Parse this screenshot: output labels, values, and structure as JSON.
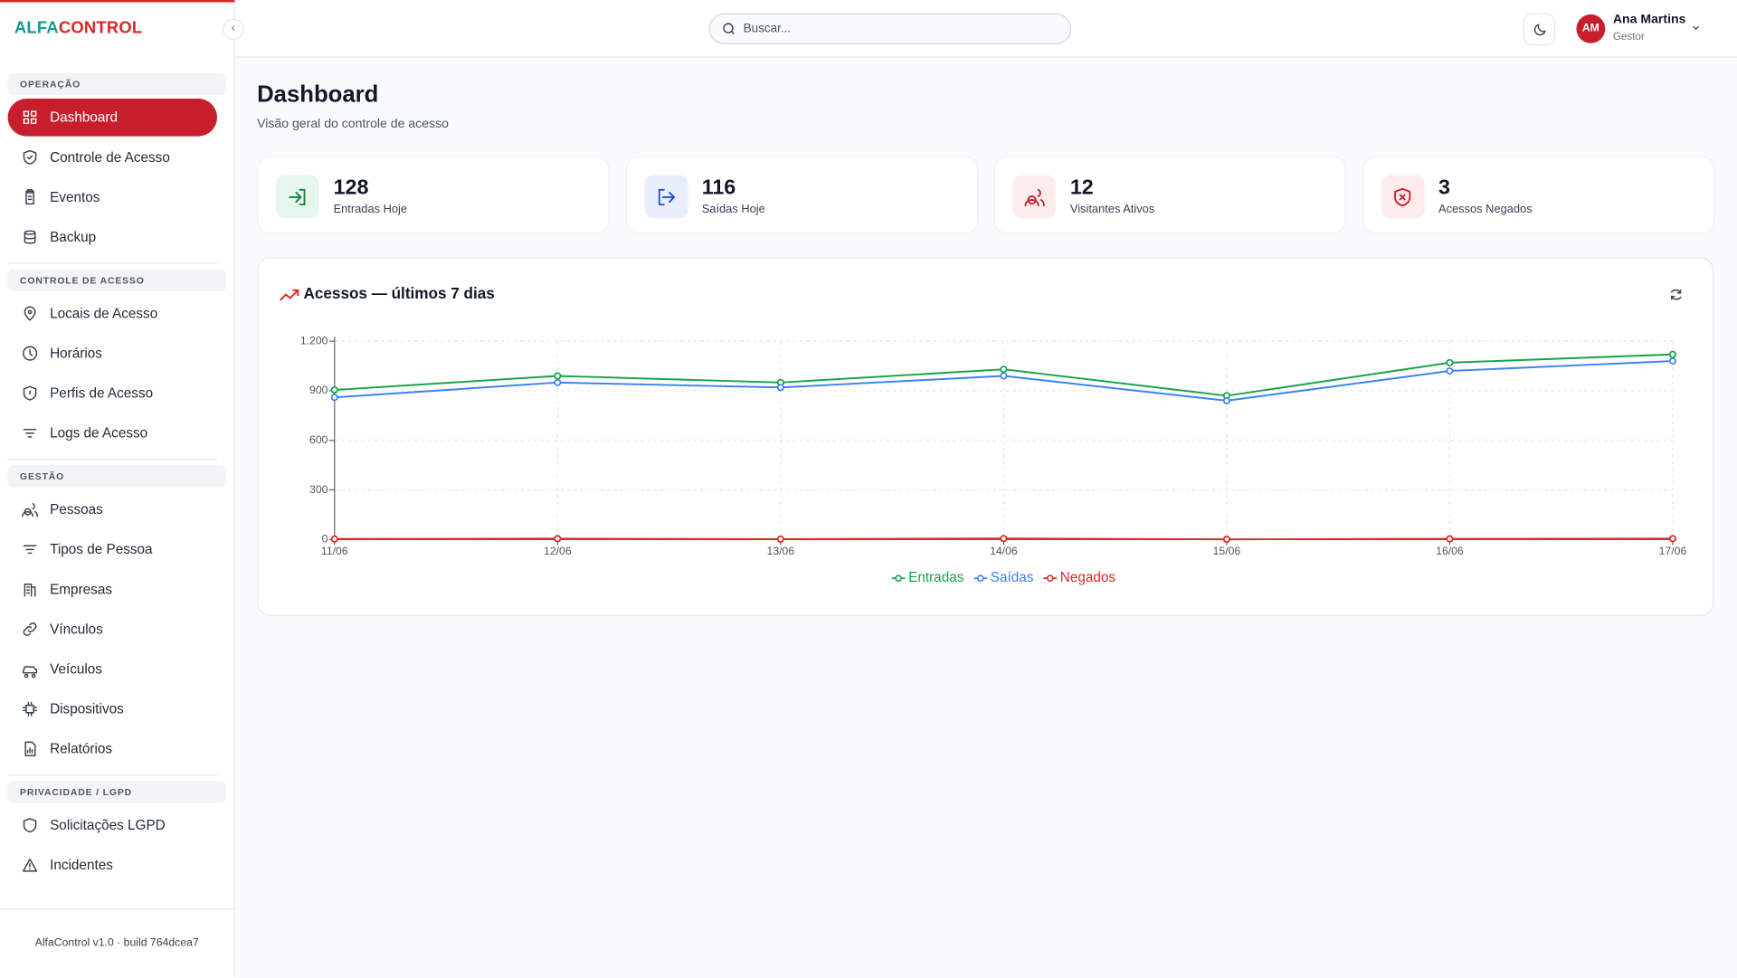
{
  "brand": {
    "first": "ALFA",
    "second": "CONTROL"
  },
  "search": {
    "placeholder": "Buscar..."
  },
  "user": {
    "initials": "AM",
    "name": "Ana Martins",
    "role": "Gestor"
  },
  "sidebar": {
    "sections": [
      {
        "title": "OPERAÇÃO",
        "items": [
          "Dashboard",
          "Controle de Acesso",
          "Eventos",
          "Backup"
        ]
      },
      {
        "title": "CONTROLE DE ACESSO",
        "items": [
          "Locais de Acesso",
          "Horários",
          "Perfis de Acesso",
          "Logs de Acesso"
        ]
      },
      {
        "title": "GESTÃO",
        "items": [
          "Pessoas",
          "Tipos de Pessoa",
          "Empresas",
          "Vínculos",
          "Veículos",
          "Dispositivos",
          "Relatórios"
        ]
      },
      {
        "title": "PRIVACIDADE / LGPD",
        "items": [
          "Solicitações LGPD",
          "Incidentes"
        ]
      }
    ],
    "footer": "AlfaControl v1.0 · build 764dcea7"
  },
  "page": {
    "title": "Dashboard",
    "subtitle": "Visão geral do controle de acesso"
  },
  "stats": [
    {
      "value": "128",
      "label": "Entradas Hoje"
    },
    {
      "value": "116",
      "label": "Saídas Hoje"
    },
    {
      "value": "12",
      "label": "Visitantes Ativos"
    },
    {
      "value": "3",
      "label": "Acessos Negados"
    }
  ],
  "chart_data": {
    "type": "line",
    "title": "Acessos — últimos 7 dias",
    "categories": [
      "11/06",
      "12/06",
      "13/06",
      "14/06",
      "15/06",
      "16/06",
      "17/06"
    ],
    "series": [
      {
        "name": "Entradas",
        "color": "#16a34a",
        "values": [
          905,
          990,
          950,
          1030,
          870,
          1070,
          1120
        ]
      },
      {
        "name": "Saídas",
        "color": "#3b82f6",
        "values": [
          860,
          950,
          920,
          990,
          840,
          1020,
          1080
        ]
      },
      {
        "name": "Negados",
        "color": "#dc2626",
        "values": [
          3,
          5,
          2,
          6,
          1,
          4,
          5
        ]
      }
    ],
    "ylim": [
      0,
      1200
    ],
    "yticks": [
      0,
      300,
      600,
      900,
      {
        "value": 1200,
        "label": "1.200"
      }
    ],
    "grid": true,
    "legend": "bottom"
  }
}
